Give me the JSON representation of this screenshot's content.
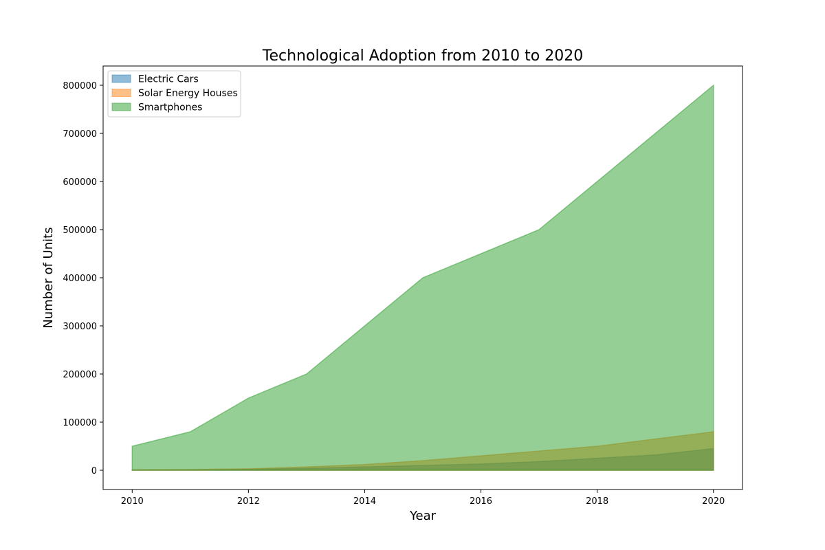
{
  "chart_data": {
    "type": "area",
    "title": "Technological Adoption from 2010 to 2020",
    "xlabel": "Year",
    "ylabel": "Number of Units",
    "x": [
      2010,
      2011,
      2012,
      2013,
      2014,
      2015,
      2016,
      2017,
      2018,
      2019,
      2020
    ],
    "xlim": [
      2009.5,
      2020.5
    ],
    "ylim": [
      -40000,
      840000
    ],
    "xticks": [
      2010,
      2012,
      2014,
      2016,
      2018,
      2020
    ],
    "yticks": [
      0,
      100000,
      200000,
      300000,
      400000,
      500000,
      600000,
      700000,
      800000
    ],
    "stacked": false,
    "grid": false,
    "legend": "upper-left",
    "series": [
      {
        "name": "Electric Cars",
        "color": "#1f77b4",
        "values": [
          500,
          1000,
          2000,
          4000,
          7000,
          10000,
          13000,
          18000,
          25000,
          32000,
          45000
        ]
      },
      {
        "name": "Solar Energy Houses",
        "color": "#ff7f0e",
        "values": [
          1000,
          1500,
          3000,
          7000,
          12000,
          20000,
          30000,
          40000,
          50000,
          65000,
          80000
        ]
      },
      {
        "name": "Smartphones",
        "color": "#2ca02c",
        "values": [
          50000,
          80000,
          150000,
          200000,
          300000,
          400000,
          450000,
          500000,
          600000,
          700000,
          800000
        ]
      }
    ]
  }
}
